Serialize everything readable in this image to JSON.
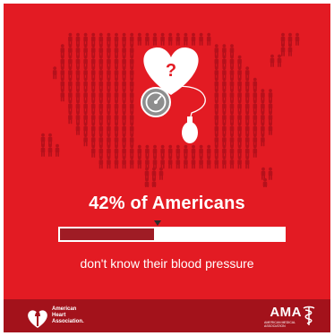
{
  "headline": "42% of Americans",
  "stat": {
    "percent": 42
  },
  "subline": "don't know their blood pressure",
  "illustration": {
    "question_mark": "?",
    "icons": [
      "people-map-icon",
      "heart-icon",
      "blood-pressure-gauge-icon",
      "pump-bulb-icon"
    ]
  },
  "colors": {
    "background": "#e31b23",
    "people": "#b5111b",
    "bar_fill": "#9f1c25",
    "bar_track": "#ffffff",
    "footer": "#a3121b"
  },
  "footer": {
    "aha_lines": [
      "American",
      "Heart",
      "Association."
    ],
    "ama_name": "AMA",
    "ama_subtitle": "AMERICAN MEDICAL ASSOCIATION"
  }
}
